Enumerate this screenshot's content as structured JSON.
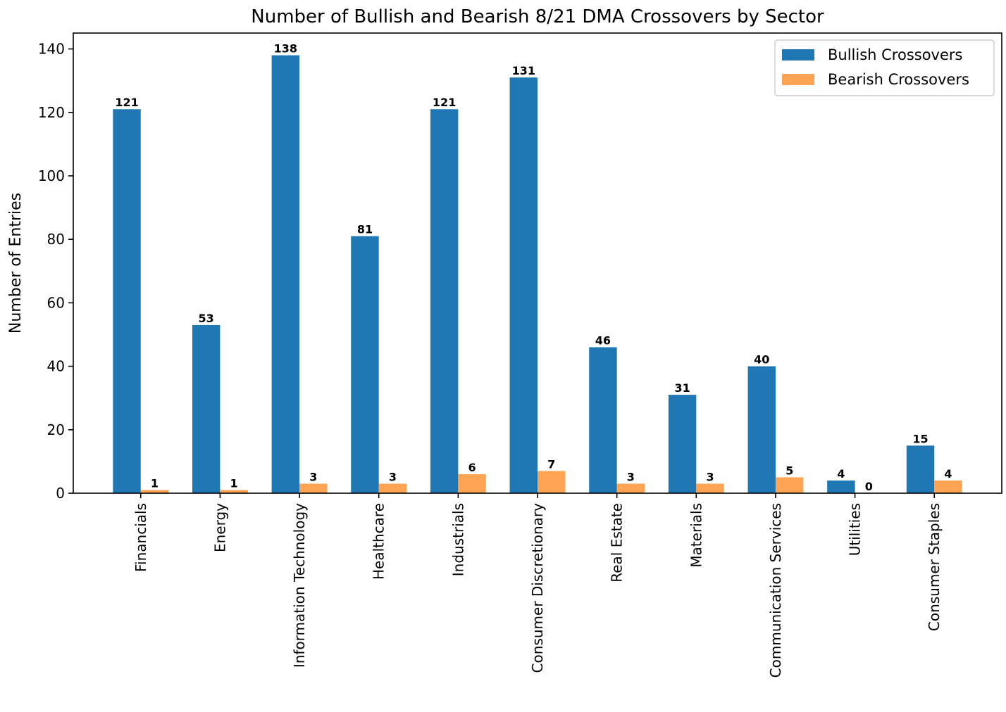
{
  "chart_data": {
    "type": "bar",
    "title": "Number of Bullish and Bearish 8/21 DMA Crossovers by Sector",
    "xlabel": "",
    "ylabel": "Number of Entries",
    "ylim": [
      0,
      145
    ],
    "yticks": [
      0,
      20,
      40,
      60,
      80,
      100,
      120,
      140
    ],
    "grid": false,
    "legend_position": "top-right",
    "categories": [
      "Financials",
      "Energy",
      "Information Technology",
      "Healthcare",
      "Industrials",
      "Consumer Discretionary",
      "Real Estate",
      "Materials",
      "Communication Services",
      "Utilities",
      "Consumer Staples"
    ],
    "series": [
      {
        "name": "Bullish Crossovers",
        "color": "#1f77b4",
        "values": [
          121,
          53,
          138,
          81,
          121,
          131,
          46,
          31,
          40,
          4,
          15
        ]
      },
      {
        "name": "Bearish Crossovers",
        "color": "#ffa354",
        "values": [
          1,
          1,
          3,
          3,
          6,
          7,
          3,
          3,
          5,
          0,
          4
        ]
      }
    ]
  }
}
